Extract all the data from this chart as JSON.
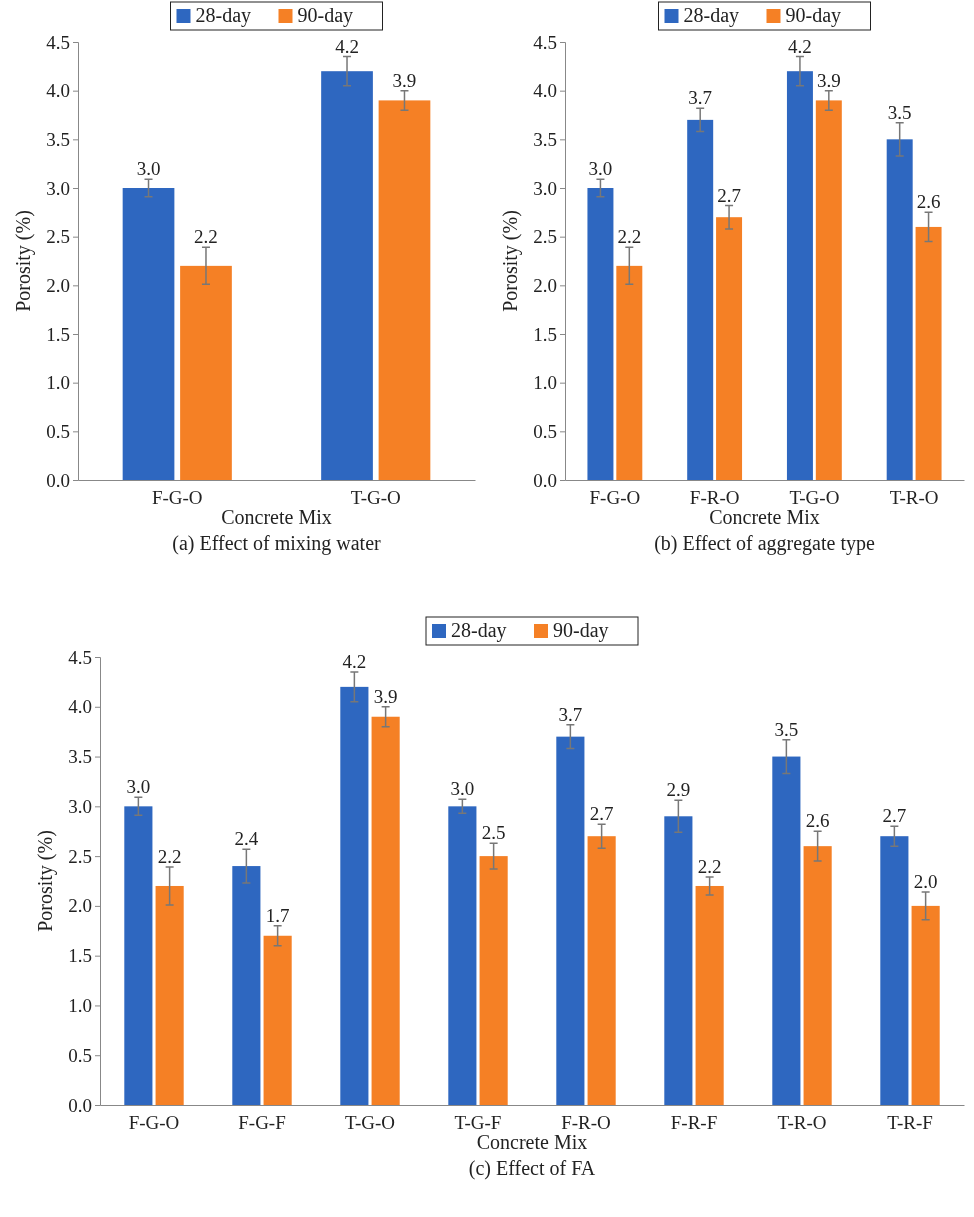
{
  "chart_data": [
    {
      "type": "bar",
      "categories": [
        "F-G-O",
        "T-G-O"
      ],
      "xlabel": "Concrete Mix",
      "ylabel": "Porosity (%)",
      "ylim": [
        0,
        4.5
      ],
      "yticks": [
        {
          "value": 0,
          "label": "0.0"
        },
        0.5,
        {
          "value": 1,
          "label": "1.0"
        },
        1.5,
        {
          "value": 2,
          "label": "2.0"
        },
        2.5,
        {
          "value": 3,
          "label": "3.0"
        },
        3.5,
        {
          "value": 4,
          "label": "4.0"
        },
        4.5
      ],
      "legend": "top",
      "annotations": [
        "(a) Effect of mixing water"
      ],
      "series": [
        {
          "name": "28-day",
          "color": "#2e67c0",
          "values": [
            3.0,
            4.2
          ],
          "errors": [
            0.09,
            0.15
          ],
          "value_labels": [
            "3.0",
            "4.2"
          ]
        },
        {
          "name": "90-day",
          "color": "#f58025",
          "values": [
            2.2,
            3.9
          ],
          "errors": [
            0.19,
            0.1
          ],
          "value_labels": [
            "2.2",
            "3.9"
          ]
        }
      ]
    },
    {
      "type": "bar",
      "categories": [
        "F-G-O",
        "F-R-O",
        "T-G-O",
        "T-R-O"
      ],
      "xlabel": "Concrete Mix",
      "ylabel": "Porosity (%)",
      "ylim": [
        0,
        4.5
      ],
      "yticks": [
        {
          "value": 0,
          "label": "0.0"
        },
        0.5,
        {
          "value": 1,
          "label": "1.0"
        },
        1.5,
        {
          "value": 2,
          "label": "2.0"
        },
        2.5,
        {
          "value": 3,
          "label": "3.0"
        },
        3.5,
        {
          "value": 4,
          "label": "4.0"
        },
        4.5
      ],
      "legend": "top",
      "annotations": [
        "(b) Effect of aggregate type"
      ],
      "series": [
        {
          "name": "28-day",
          "color": "#2e67c0",
          "values": [
            3.0,
            3.7,
            4.2,
            3.5
          ],
          "errors": [
            0.09,
            0.12,
            0.15,
            0.17
          ],
          "value_labels": [
            "3.0",
            "3.7",
            "4.2",
            "3.5"
          ]
        },
        {
          "name": "90-day",
          "color": "#f58025",
          "values": [
            2.2,
            2.7,
            3.9,
            2.6
          ],
          "errors": [
            0.19,
            0.12,
            0.1,
            0.15
          ],
          "value_labels": [
            "2.2",
            "2.7",
            "3.9",
            "2.6"
          ]
        }
      ]
    },
    {
      "type": "bar",
      "categories": [
        "F-G-O",
        "F-G-F",
        "T-G-O",
        "T-G-F",
        "F-R-O",
        "F-R-F",
        "T-R-O",
        "T-R-F"
      ],
      "xlabel": "Concrete Mix",
      "ylabel": "Porosity (%)",
      "ylim": [
        0,
        4.5
      ],
      "yticks": [
        {
          "value": 0,
          "label": "0.0"
        },
        0.5,
        {
          "value": 1,
          "label": "1.0"
        },
        1.5,
        {
          "value": 2,
          "label": "2.0"
        },
        2.5,
        {
          "value": 3,
          "label": "3.0"
        },
        3.5,
        {
          "value": 4,
          "label": "4.0"
        },
        4.5
      ],
      "legend": "top",
      "annotations": [
        "(c) Effect of FA"
      ],
      "series": [
        {
          "name": "28-day",
          "color": "#2e67c0",
          "values": [
            3.0,
            2.4,
            4.2,
            3.0,
            3.7,
            2.9,
            3.5,
            2.7
          ],
          "errors": [
            0.09,
            0.17,
            0.15,
            0.07,
            0.12,
            0.16,
            0.17,
            0.1
          ],
          "value_labels": [
            "3.0",
            "2.4",
            "4.2",
            "3.0",
            "3.7",
            "2.9",
            "3.5",
            "2.7"
          ]
        },
        {
          "name": "90-day",
          "color": "#f58025",
          "values": [
            2.2,
            1.7,
            3.9,
            2.5,
            2.7,
            2.2,
            2.6,
            2.0
          ],
          "errors": [
            0.19,
            0.1,
            0.1,
            0.13,
            0.12,
            0.09,
            0.15,
            0.14
          ],
          "value_labels": [
            "2.2",
            "1.7",
            "3.9",
            "2.5",
            "2.7",
            "2.2",
            "2.6",
            "2.0"
          ]
        }
      ]
    }
  ]
}
